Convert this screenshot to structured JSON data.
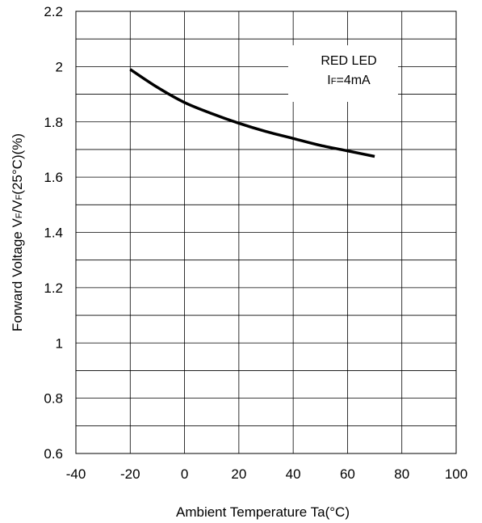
{
  "chart_data": {
    "type": "line",
    "xlabel": "Ambient Temperature Ta(°C)",
    "ylabel": {
      "parts": [
        {
          "text": "Forward Voltage V",
          "sub": false
        },
        {
          "text": "F",
          "sub": true
        },
        {
          "text": "/V",
          "sub": false
        },
        {
          "text": "F",
          "sub": true
        },
        {
          "text": "(25°C)(%)",
          "sub": false
        }
      ]
    },
    "xlim": [
      -40,
      100
    ],
    "ylim": [
      0.6,
      2.2
    ],
    "x_ticks": [
      -40,
      -20,
      0,
      20,
      40,
      60,
      80,
      100
    ],
    "y_ticks": [
      0.6,
      0.8,
      1,
      1.2,
      1.4,
      1.6,
      1.8,
      2,
      2.2
    ],
    "x_tick_labels": [
      "-40",
      "-20",
      "0",
      "20",
      "40",
      "60",
      "80",
      "100"
    ],
    "y_tick_labels": [
      "0.6",
      "0.8",
      "1",
      "1.2",
      "1.4",
      "1.6",
      "1.8",
      "2",
      "2.2"
    ],
    "x_minor_step": 20,
    "y_minor_step": 0.1,
    "grid": true,
    "series": [
      {
        "color": "#000000",
        "x": [
          -20,
          -10,
          0,
          10,
          20,
          30,
          40,
          50,
          60,
          70
        ],
        "y": [
          1.99,
          1.925,
          1.87,
          1.83,
          1.795,
          1.765,
          1.74,
          1.715,
          1.695,
          1.675
        ]
      }
    ],
    "annotation": {
      "line1": "RED LED",
      "line2_main": "I",
      "line2_sub": "F",
      "line2_rest": "=4mA",
      "position": "top-right"
    }
  }
}
